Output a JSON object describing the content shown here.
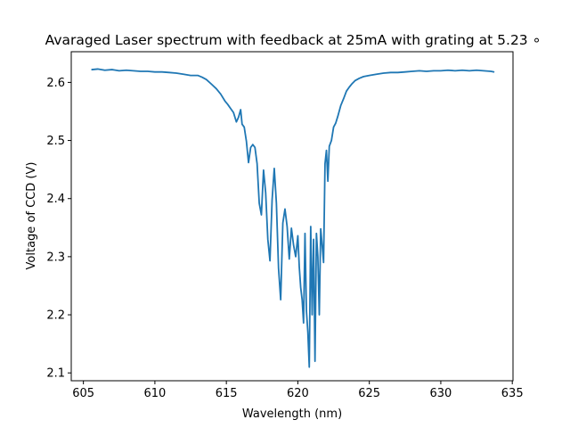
{
  "chart_data": {
    "type": "line",
    "title": "Avaraged Laser spectrum with feedback at 25mA with grating at 5.23 ∘",
    "xlabel": "Wavelength (nm)",
    "ylabel": "Voltage of CCD (V)",
    "xlim": [
      604.15,
      635.05
    ],
    "ylim": [
      2.0865,
      2.6528
    ],
    "xticks": [
      605,
      610,
      615,
      620,
      625,
      630,
      635
    ],
    "yticks": [
      2.1,
      2.2,
      2.3,
      2.4,
      2.5,
      2.6
    ],
    "xtick_labels": [
      "605",
      "610",
      "615",
      "620",
      "625",
      "630",
      "635"
    ],
    "ytick_labels": [
      "2.1",
      "2.2",
      "2.3",
      "2.4",
      "2.5",
      "2.6"
    ],
    "grid": false,
    "legend": "none",
    "line_color": "#1f77b4",
    "series": [
      {
        "x": [
          605.6,
          606.0,
          606.5,
          607.0,
          607.5,
          608.0,
          608.5,
          609.0,
          609.5,
          610.0,
          610.5,
          611.0,
          611.5,
          612.0,
          612.5,
          613.0,
          613.3,
          613.6,
          614.0,
          614.3,
          614.6,
          614.9,
          615.1,
          615.3,
          615.5,
          615.7,
          615.85,
          616.0,
          616.1,
          616.25,
          616.4,
          616.55,
          616.7,
          616.85,
          617.0,
          617.15,
          617.3,
          617.45,
          617.6,
          617.75,
          617.9,
          618.05,
          618.2,
          618.35,
          618.5,
          618.65,
          618.8,
          618.95,
          619.1,
          619.25,
          619.4,
          619.55,
          619.7,
          619.85,
          620.0,
          620.1,
          620.2,
          620.3,
          620.4,
          620.5,
          620.6,
          620.7,
          620.8,
          620.9,
          621.0,
          621.1,
          621.2,
          621.3,
          621.4,
          621.5,
          621.6,
          621.7,
          621.8,
          621.9,
          622.0,
          622.1,
          622.2,
          622.35,
          622.5,
          622.65,
          622.8,
          623.0,
          623.2,
          623.4,
          623.6,
          623.8,
          624.0,
          624.3,
          624.6,
          625.0,
          625.5,
          626.0,
          626.5,
          627.0,
          627.5,
          628.0,
          628.5,
          629.0,
          629.5,
          630.0,
          630.5,
          631.0,
          631.5,
          632.0,
          632.5,
          633.0,
          633.5,
          633.7
        ],
        "y": [
          2.622,
          2.623,
          2.621,
          2.622,
          2.62,
          2.621,
          2.62,
          2.619,
          2.619,
          2.618,
          2.618,
          2.617,
          2.616,
          2.614,
          2.612,
          2.612,
          2.609,
          2.605,
          2.596,
          2.589,
          2.58,
          2.568,
          2.562,
          2.555,
          2.548,
          2.532,
          2.54,
          2.553,
          2.528,
          2.523,
          2.499,
          2.462,
          2.488,
          2.493,
          2.488,
          2.46,
          2.392,
          2.372,
          2.449,
          2.41,
          2.33,
          2.293,
          2.398,
          2.452,
          2.392,
          2.28,
          2.226,
          2.358,
          2.382,
          2.352,
          2.296,
          2.349,
          2.32,
          2.3,
          2.336,
          2.282,
          2.247,
          2.226,
          2.186,
          2.34,
          2.207,
          2.17,
          2.11,
          2.352,
          2.2,
          2.33,
          2.12,
          2.34,
          2.3,
          2.2,
          2.348,
          2.32,
          2.29,
          2.46,
          2.483,
          2.43,
          2.49,
          2.5,
          2.523,
          2.53,
          2.542,
          2.56,
          2.572,
          2.585,
          2.592,
          2.598,
          2.603,
          2.607,
          2.61,
          2.612,
          2.614,
          2.616,
          2.617,
          2.617,
          2.618,
          2.619,
          2.62,
          2.619,
          2.62,
          2.62,
          2.621,
          2.62,
          2.621,
          2.62,
          2.621,
          2.62,
          2.619,
          2.618
        ]
      }
    ]
  }
}
